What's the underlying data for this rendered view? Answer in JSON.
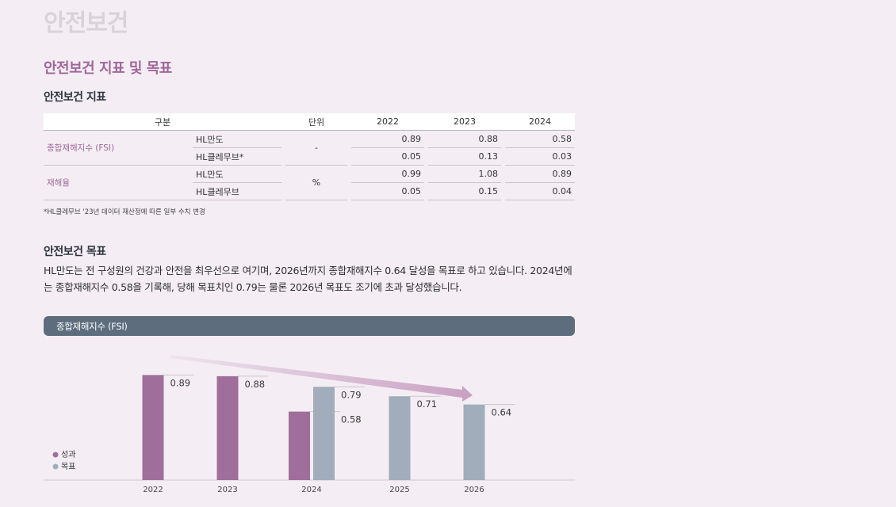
{
  "page_title": "안전보건",
  "section_title": "안전보건 지표 및 목표",
  "indicators": {
    "heading": "안전보건 지표",
    "headers": {
      "category": "구분",
      "unit": "단위",
      "y2022": "2022",
      "y2023": "2023",
      "y2024": "2024"
    },
    "rows": [
      {
        "category": "종합재해지수 (FSI)",
        "unit": "-",
        "companies": [
          {
            "name": "HL만도",
            "v2022": "0.89",
            "v2023": "0.88",
            "v2024": "0.58"
          },
          {
            "name": "HL클레무브*",
            "v2022": "0.05",
            "v2023": "0.13",
            "v2024": "0.03"
          }
        ]
      },
      {
        "category": "재해율",
        "unit": "%",
        "companies": [
          {
            "name": "HL만도",
            "v2022": "0.99",
            "v2023": "1.08",
            "v2024": "0.89"
          },
          {
            "name": "HL클레무브",
            "v2022": "0.05",
            "v2023": "0.15",
            "v2024": "0.04"
          }
        ]
      }
    ],
    "footnote": "*HL클레무브 '23년 데이터 재산정에 따른 일부 수치 변경"
  },
  "targets": {
    "heading": "안전보건 목표",
    "paragraph": "HL만도는 전 구성원의 건강과 안전을 최우선으로 여기며, 2026년까지 종합재해지수 0.64 달성을 목표로 하고 있습니다. 2024년에는 종합재해지수 0.58을 기록해, 당해 목표치인 0.79는 물론 2026년 목표도 조기에 초과 달성했습니다."
  },
  "colors": {
    "performance": "#a06e9b",
    "target": "#a1adba",
    "header_bar": "#5e6d7e",
    "accent": "#a0669a"
  },
  "chart_data": {
    "type": "bar",
    "title": "종합재해지수 (FSI)",
    "categories": [
      "2022",
      "2023",
      "2024",
      "2025",
      "2026"
    ],
    "series": [
      {
        "name": "성과",
        "values": [
          0.89,
          0.88,
          0.58,
          null,
          null
        ]
      },
      {
        "name": "목표",
        "values": [
          null,
          null,
          0.79,
          0.71,
          0.64
        ]
      }
    ],
    "ylim": [
      0,
      1.0
    ],
    "legend": "bottom-left",
    "grid": false
  }
}
